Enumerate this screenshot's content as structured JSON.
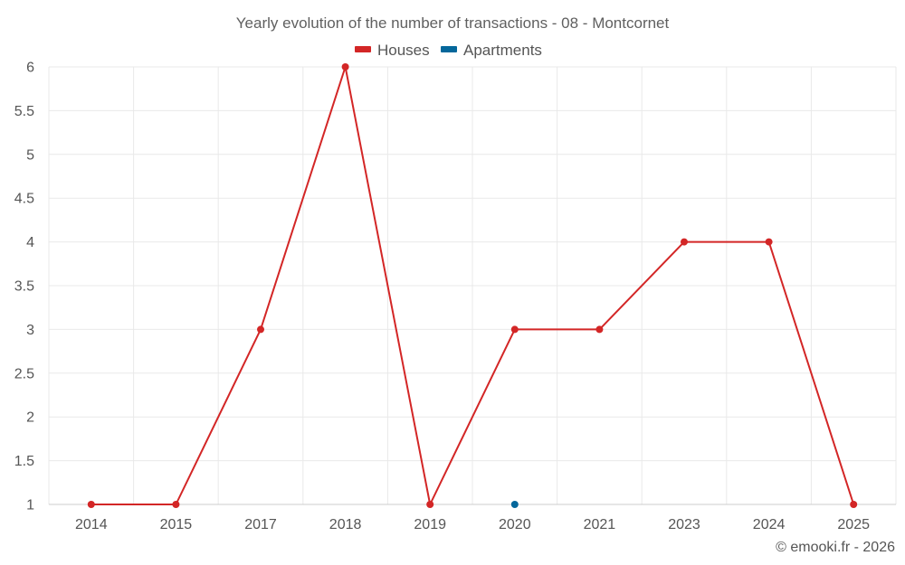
{
  "chart_data": {
    "type": "line",
    "title": "Yearly evolution of the number of transactions - 08 - Montcornet",
    "categories": [
      "2014",
      "2015",
      "2017",
      "2018",
      "2019",
      "2020",
      "2021",
      "2023",
      "2024",
      "2025"
    ],
    "series": [
      {
        "name": "Houses",
        "color": "#d32626",
        "values": [
          1,
          1,
          3,
          6,
          1,
          3,
          3,
          4,
          4,
          1
        ]
      },
      {
        "name": "Apartments",
        "color": "#04679b",
        "values": [
          null,
          null,
          null,
          null,
          null,
          1,
          null,
          null,
          null,
          null
        ]
      }
    ],
    "ylim": [
      1,
      6
    ],
    "yticks": [
      "1",
      "1.5",
      "2",
      "2.5",
      "3",
      "3.5",
      "4",
      "4.5",
      "5",
      "5.5",
      "6"
    ],
    "xlabel": "",
    "ylabel": "",
    "grid": true,
    "legend_position": "top-center"
  },
  "credit": "© emooki.fr - 2026"
}
